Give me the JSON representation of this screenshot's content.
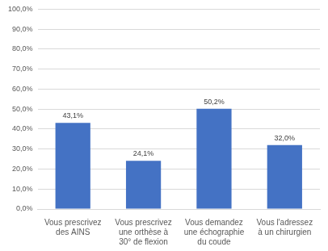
{
  "chart_data": {
    "type": "bar",
    "categories": [
      "Vous prescrivez des AINS",
      "Vous prescrivez une orthèse à 30° de flexion",
      "Vous demandez une échographie du coude",
      "Vous l'adressez à un chirurgien"
    ],
    "values": [
      43.1,
      24.1,
      50.2,
      32.0
    ],
    "value_labels": [
      "43,1%",
      "24,1%",
      "50,2%",
      "32,0%"
    ],
    "data_labels": true,
    "color": "#4472c4",
    "ylim": [
      0,
      100
    ],
    "yticks": [
      {
        "value": 0,
        "label": "0,0%"
      },
      {
        "value": 10,
        "label": "10,0%"
      },
      {
        "value": 20,
        "label": "20,0%"
      },
      {
        "value": 30,
        "label": "30,0%"
      },
      {
        "value": 40,
        "label": "40,0%"
      },
      {
        "value": 50,
        "label": "50,0%"
      },
      {
        "value": 60,
        "label": "60,0%"
      },
      {
        "value": 70,
        "label": "70,0%"
      },
      {
        "value": 80,
        "label": "80,0%"
      },
      {
        "value": 90,
        "label": "90,0%"
      },
      {
        "value": 100,
        "label": "100,0%"
      }
    ],
    "grid": true
  }
}
